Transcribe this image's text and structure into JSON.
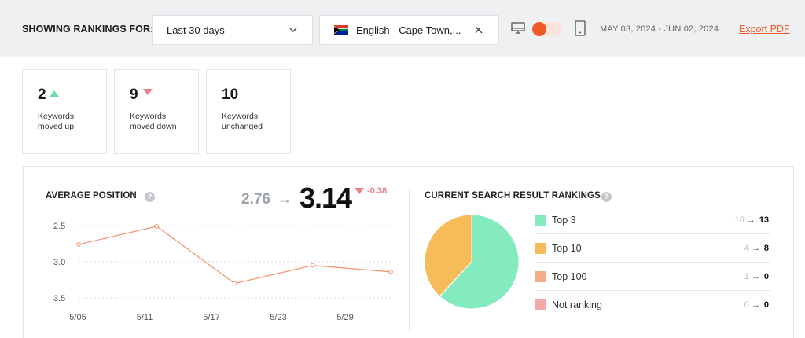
{
  "filter_bar": {
    "label": "SHOWING RANKINGS FOR:",
    "period_value": "Last 30 days",
    "locale_value": "English - Cape Town,...",
    "date_range": "MAY 03, 2024 - JUN 02, 2024",
    "export_label": "Export PDF",
    "device_toggle": "desktop",
    "accent_color": "#f05a28"
  },
  "stats": [
    {
      "value": "2",
      "trend": "up",
      "label": "Keywords moved up"
    },
    {
      "value": "9",
      "trend": "down",
      "label": "Keywords moved down"
    },
    {
      "value": "10",
      "trend": "none",
      "label": "Keywords unchanged"
    }
  ],
  "average_position": {
    "title": "AVERAGE POSITION",
    "from": "2.76",
    "arrow": "→",
    "to": "3.14",
    "delta": "-0.38"
  },
  "current_rankings": {
    "title": "CURRENT SEARCH RESULT RANKINGS",
    "rows": [
      {
        "label": "Top 3",
        "from": "16",
        "to": "13",
        "color": "#84ebbf"
      },
      {
        "label": "Top 10",
        "from": "4",
        "to": "8",
        "color": "#f7bc5a"
      },
      {
        "label": "Top 100",
        "from": "1",
        "to": "0",
        "color": "#f2ad84"
      },
      {
        "label": "Not ranking",
        "from": "0",
        "to": "0",
        "color": "#f4a8a8"
      }
    ]
  },
  "chart_data": [
    {
      "type": "line",
      "x": [
        "5/03",
        "5/11",
        "5/18",
        "5/25",
        "6/01"
      ],
      "xticks": [
        "5/05",
        "5/11",
        "5/17",
        "5/23",
        "5/29"
      ],
      "series": [
        {
          "values": [
            2.76,
            2.51,
            3.3,
            3.05,
            3.14
          ]
        }
      ],
      "yticks": [
        "2.5",
        "3.0",
        "3.5"
      ],
      "ylim": [
        2.5,
        3.5
      ],
      "y_inverted": true,
      "grid": true,
      "line_color": "#f29170"
    },
    {
      "type": "pie",
      "categories": [
        "Top 3",
        "Top 10",
        "Top 100",
        "Not ranking"
      ],
      "values": [
        13,
        8,
        0,
        0
      ],
      "colors": [
        "#84ebbf",
        "#f7bc5a",
        "#f2ad84",
        "#f4a8a8"
      ]
    }
  ]
}
